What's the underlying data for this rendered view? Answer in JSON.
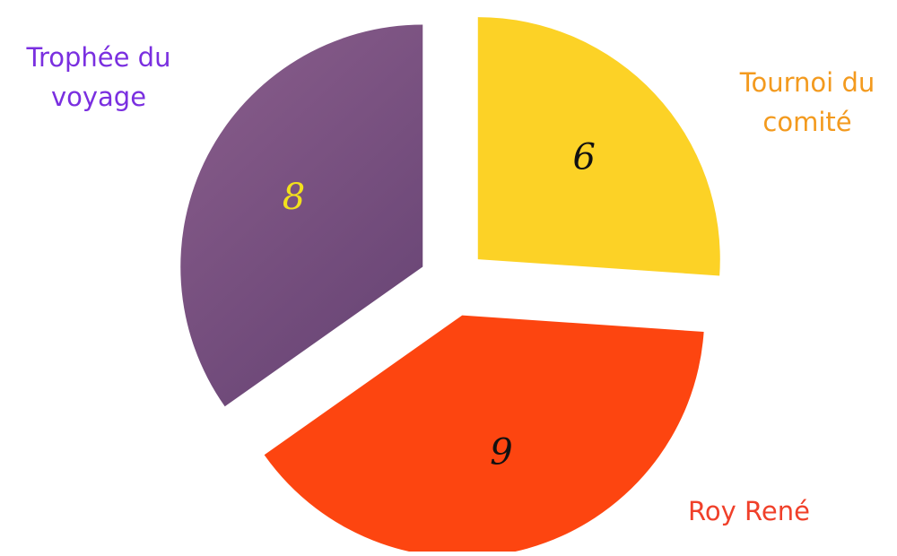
{
  "chart_data": {
    "type": "pie",
    "exploded": true,
    "start_angle_deg": 0,
    "direction": "clockwise",
    "slices": [
      {
        "label": "Tournoi du\ncomité",
        "value": 6,
        "color": "#FCD226",
        "label_color": "#F39A1E",
        "value_color": "#111111"
      },
      {
        "label": "Roy René",
        "value": 9,
        "color": "#FD4510",
        "label_color": "#F0402A",
        "value_color": "#111111"
      },
      {
        "label": "Trophée du\nvoyage",
        "value": 8,
        "color": "#8A5E8C",
        "gradient_to": "#6A4676",
        "label_color": "#7A2FE0",
        "value_color": "#F2E11C"
      }
    ]
  }
}
